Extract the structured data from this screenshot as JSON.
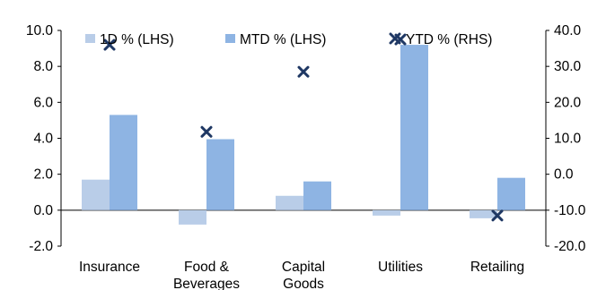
{
  "chart_data": {
    "type": "bar",
    "categories": [
      [
        "Insurance"
      ],
      [
        "Food &",
        "Beverages"
      ],
      [
        "Capital",
        "Goods"
      ],
      [
        "Utilities"
      ],
      [
        "Retailing"
      ]
    ],
    "series": [
      {
        "name": "1D % (LHS)",
        "kind": "bar",
        "axis": "left",
        "color": "#b9cde8",
        "values": [
          1.7,
          -0.8,
          0.8,
          -0.3,
          -0.45
        ]
      },
      {
        "name": "MTD % (LHS)",
        "kind": "bar",
        "axis": "left",
        "color": "#8eb4e3",
        "values": [
          5.3,
          3.95,
          1.6,
          9.2,
          1.8
        ]
      },
      {
        "name": "YTD % (RHS)",
        "kind": "scatter",
        "marker": "x",
        "axis": "right",
        "color": "#1f3864",
        "values": [
          36.0,
          11.8,
          28.5,
          37.5,
          -11.5
        ]
      }
    ],
    "ylim_left": [
      -2.0,
      10.0
    ],
    "yticks_left": [
      "-2.0",
      "0.0",
      "2.0",
      "4.0",
      "6.0",
      "8.0",
      "10.0"
    ],
    "ylim_right": [
      -20.0,
      40.0
    ],
    "yticks_right": [
      "-20.0",
      "-10.0",
      "0.0",
      "10.0",
      "20.0",
      "30.0",
      "40.0"
    ],
    "legend_position": "top",
    "grid": false
  }
}
